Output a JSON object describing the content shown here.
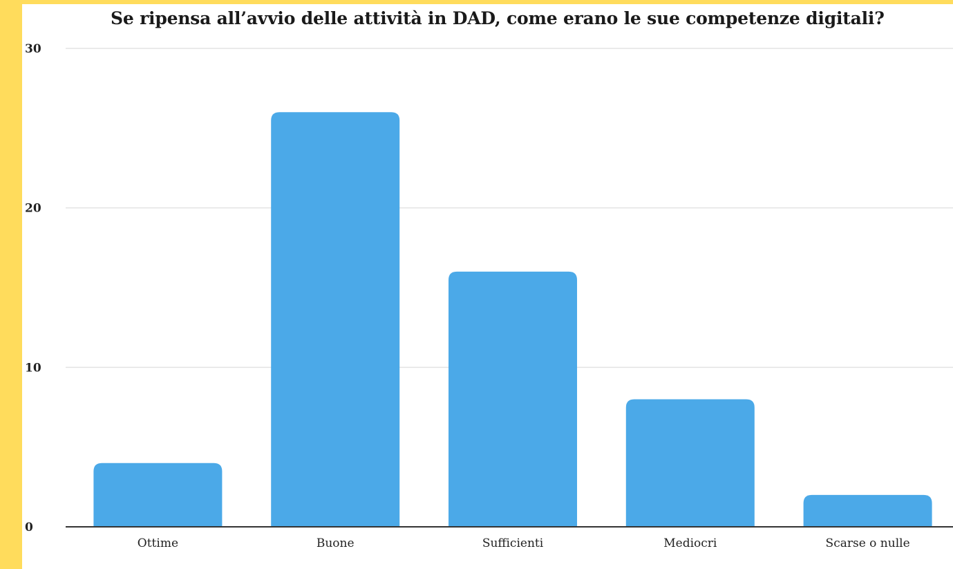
{
  "chart_data": {
    "type": "bar",
    "title": "Se ripensa all’avvio delle attività in DAD, come erano le sue competenze digitali?",
    "categories": [
      "Ottime",
      "Buone",
      "Sufficienti",
      "Mediocri",
      "Scarse o nulle"
    ],
    "values": [
      4,
      26,
      16,
      8,
      2
    ],
    "ylim": [
      0,
      30
    ],
    "yticks": [
      "0",
      "10",
      "20",
      "30"
    ],
    "xlabel": "",
    "ylabel": "",
    "grid": true,
    "legend": "none",
    "bar_color": "#4BA9E8",
    "frame_color": "#FFDC5C"
  }
}
